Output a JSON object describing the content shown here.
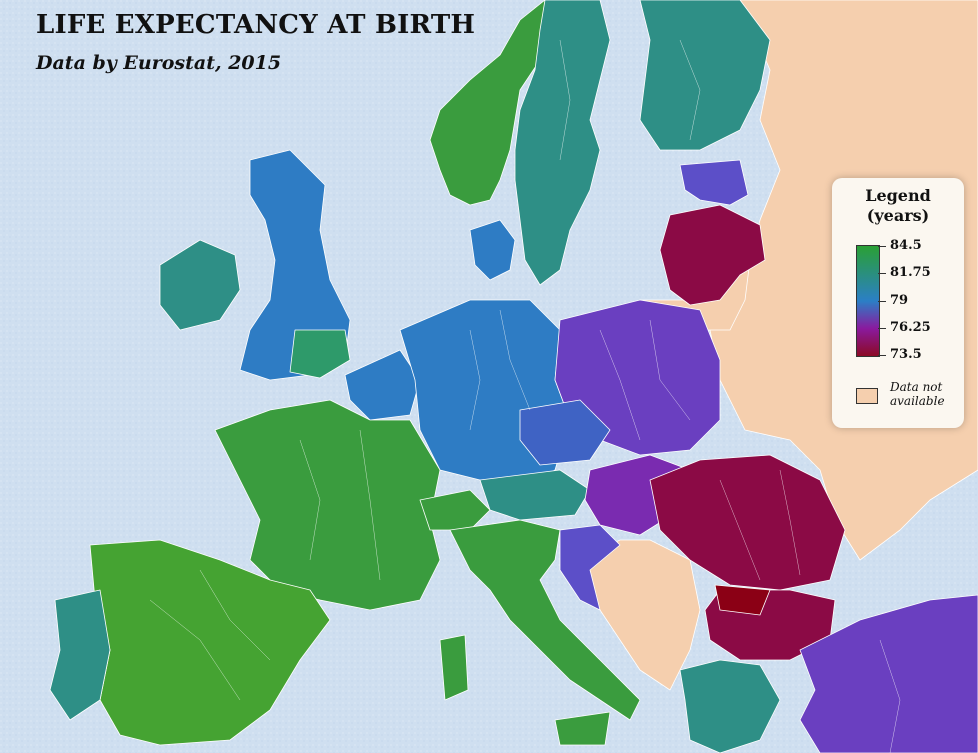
{
  "title": "LIFE EXPECTANCY AT BIRTH",
  "subtitle": "Data by Eurostat, 2015",
  "legend": {
    "title_line1": "Legend",
    "title_line2": "(years)",
    "ticks": [
      "84.5",
      "81.75",
      "79",
      "76.25",
      "73.5"
    ],
    "na_line1": "Data not",
    "na_line2": "available"
  },
  "colors": {
    "sea": "#cfdff0",
    "no_data": "#f5cfae",
    "green": "#3a9c3e",
    "teal": "#2e8f86",
    "blue": "#2e7cc4",
    "violet": "#6a3fc0",
    "purple": "#8a1a9e",
    "crimson": "#8b0a35",
    "border": "#ffffff"
  }
}
